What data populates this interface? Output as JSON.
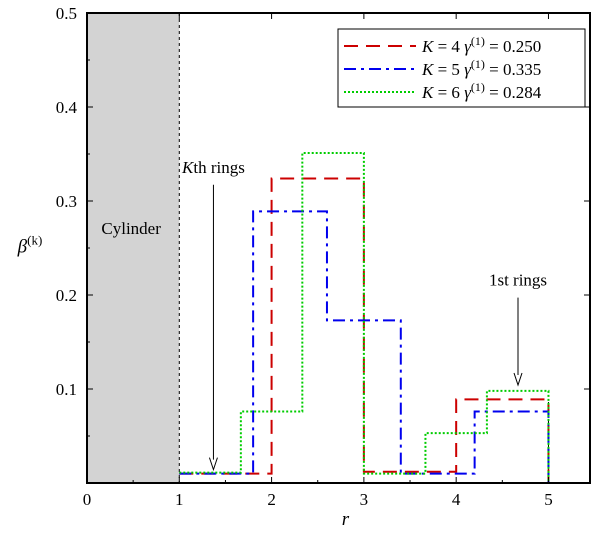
{
  "chart_data": {
    "type": "line",
    "step": true,
    "xlabel": "r",
    "ylabel": {
      "base": "β",
      "sup": "(k)"
    },
    "xlim": [
      0,
      5.45
    ],
    "ylim": [
      0,
      0.5
    ],
    "x_ticks": [
      "0",
      "1",
      "2",
      "3",
      "4",
      "5"
    ],
    "y_ticks": [
      "0.1",
      "0.2",
      "0.3",
      "0.4",
      "0.5"
    ],
    "grid": false,
    "legend_position": "top-right",
    "cylinder": {
      "label": "Cylinder",
      "x_range": [
        0,
        1
      ],
      "color": "#d3d3d3"
    },
    "series": [
      {
        "name": "K = 4 γ(1) = 0.250",
        "legend": {
          "k": "K",
          "k_eq": " = 4 ",
          "gamma": "γ",
          "sup": "(1)",
          "value": " = 0.250"
        },
        "color": "#cc0000",
        "dash": "dashed",
        "edges": [
          1,
          2,
          3,
          4,
          5
        ],
        "values": [
          0.01,
          0.324,
          0.012,
          0.089
        ]
      },
      {
        "name": "K = 5 γ(1) = 0.335",
        "legend": {
          "k": "K",
          "k_eq": " = 5 ",
          "gamma": "γ",
          "sup": "(1)",
          "value": " = 0.335"
        },
        "color": "#0000ee",
        "dash": "dashdot",
        "edges": [
          1,
          1.8,
          2.6,
          3.4,
          4.2,
          5
        ],
        "values": [
          0.01,
          0.289,
          0.173,
          0.01,
          0.076
        ]
      },
      {
        "name": "K = 6 γ(1) = 0.284",
        "legend": {
          "k": "K",
          "k_eq": " = 6 ",
          "gamma": "γ",
          "sup": "(1)",
          "value": " = 0.284"
        },
        "color": "#00cc00",
        "dash": "dotted",
        "edges": [
          1,
          1.667,
          2.333,
          3,
          3.667,
          4.333,
          5
        ],
        "values": [
          0.011,
          0.076,
          0.351,
          0.01,
          0.053,
          0.098
        ]
      }
    ],
    "annotations": [
      {
        "text_italic": "K",
        "text": "th rings",
        "arrow_to": [
          1.37,
          0.01
        ]
      },
      {
        "text_italic": "",
        "text": "1st rings",
        "arrow_to": [
          4.67,
          0.1
        ]
      }
    ]
  }
}
